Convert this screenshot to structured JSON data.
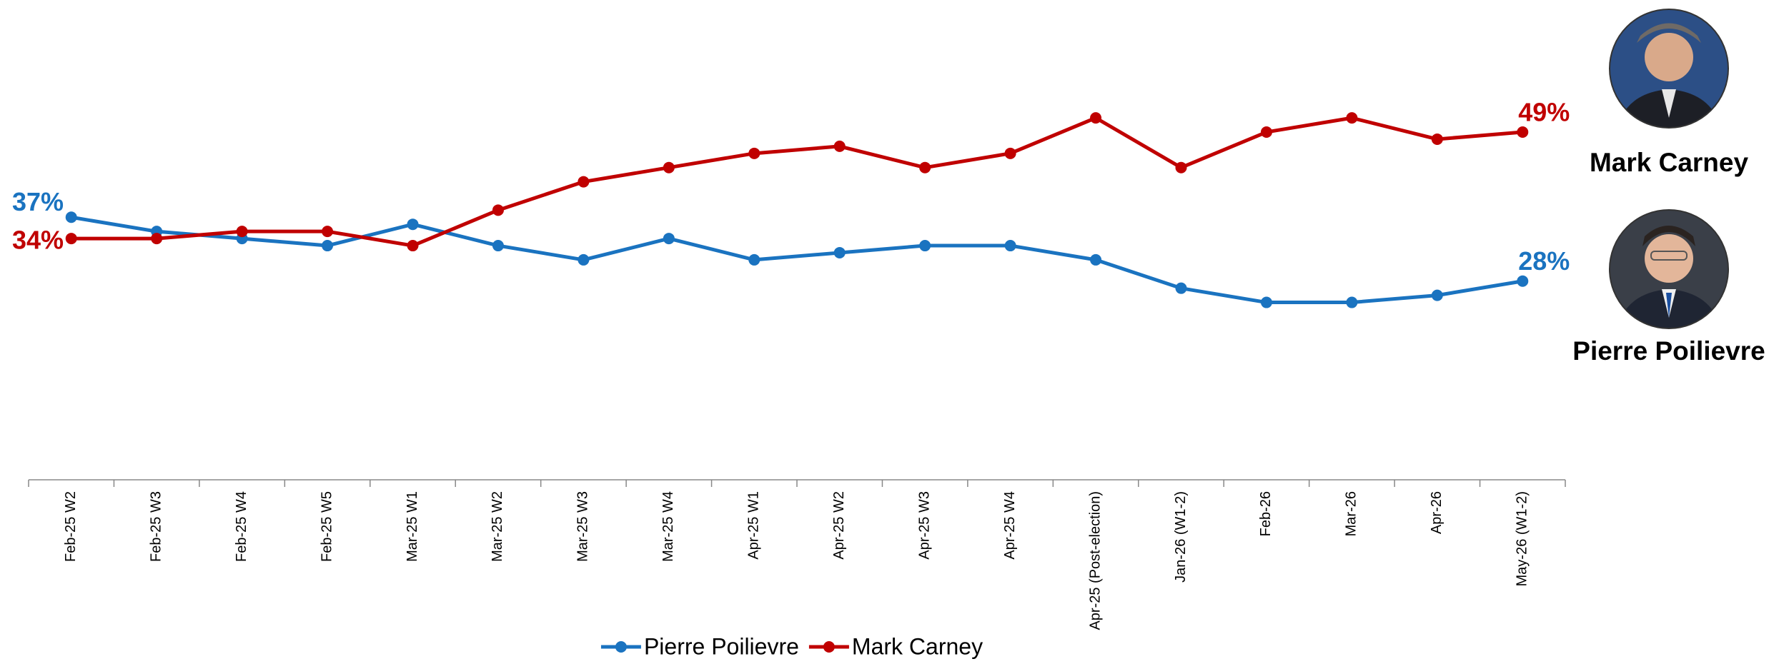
{
  "chart_data": {
    "type": "line",
    "categories": [
      "Feb-25 W2",
      "Feb-25 W3",
      "Feb-25 W4",
      "Feb-25 W5",
      "Mar-25 W1",
      "Mar-25 W2",
      "Mar-25 W3",
      "Mar-25 W4",
      "Apr-25 W1",
      "Apr-25 W2",
      "Apr-25 W3",
      "Apr-25 W4",
      "Apr-25 (Post-election)",
      "Jan-26 (W1-2)",
      "Feb-26",
      "Mar-26",
      "Apr-26",
      "May-26 (W1-2)"
    ],
    "series": [
      {
        "name": "Pierre Poilievre",
        "color": "#1a73c0",
        "values": [
          37,
          35,
          34,
          33,
          36,
          33,
          31,
          34,
          31,
          32,
          33,
          33,
          31,
          27,
          25,
          25,
          26,
          28
        ],
        "value_labels": [
          "37%",
          null,
          null,
          null,
          null,
          null,
          null,
          null,
          null,
          null,
          null,
          null,
          null,
          null,
          null,
          null,
          null,
          "28%"
        ]
      },
      {
        "name": "Mark Carney",
        "color": "#c00000",
        "values": [
          34,
          34,
          35,
          35,
          33,
          38,
          42,
          44,
          46,
          47,
          44,
          46,
          51,
          44,
          49,
          51,
          48,
          49
        ],
        "value_labels": [
          "34%",
          null,
          null,
          null,
          null,
          null,
          null,
          null,
          null,
          null,
          null,
          null,
          null,
          null,
          null,
          null,
          null,
          "49%"
        ]
      }
    ],
    "ylim": [
      0,
      65
    ],
    "grid": false,
    "legend": "bottom"
  },
  "portraits": [
    {
      "name": "Mark Carney"
    },
    {
      "name": "Pierre Poilievre"
    }
  ]
}
